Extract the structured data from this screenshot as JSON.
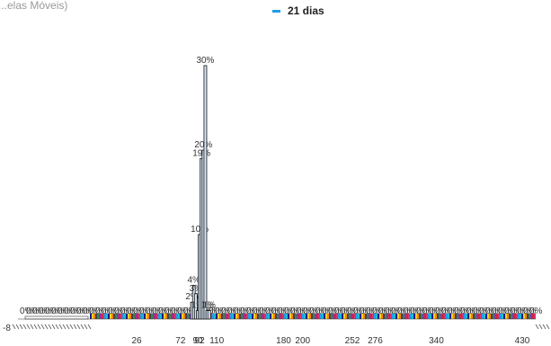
{
  "chart_data": {
    "type": "bar",
    "title": "...elas Móveis)",
    "legend_position": "top",
    "series": [
      {
        "name": "21 dias",
        "color": "#1f9cf0",
        "points": [
          {
            "x": 84,
            "label": "2%",
            "value": 2
          },
          {
            "x": 86,
            "label": "4%",
            "value": 4
          },
          {
            "x": 88,
            "label": "3%",
            "value": 3
          },
          {
            "x": 90,
            "label": "1%",
            "value": 1
          },
          {
            "x": 92,
            "label": "10%",
            "value": 10
          },
          {
            "x": 94,
            "label": "19%",
            "value": 19
          },
          {
            "x": 96,
            "label": "20%",
            "value": 20
          },
          {
            "x": 98,
            "label": "30%",
            "value": 30
          },
          {
            "x": 100,
            "label": "1%",
            "value": 1
          },
          {
            "x": 102,
            "label": "1%",
            "value": 1
          }
        ]
      }
    ],
    "noise_label": "0%",
    "x_ticks": [
      26,
      72,
      90,
      92,
      110,
      180,
      200,
      252,
      276,
      340,
      430
    ],
    "x_tick_labels": [
      "26",
      "72",
      "90",
      "92",
      "110",
      "180",
      "200",
      "252",
      "276",
      "340",
      "430"
    ],
    "x_left_label": "-8",
    "ylim": [
      0,
      30
    ],
    "grid": false
  }
}
